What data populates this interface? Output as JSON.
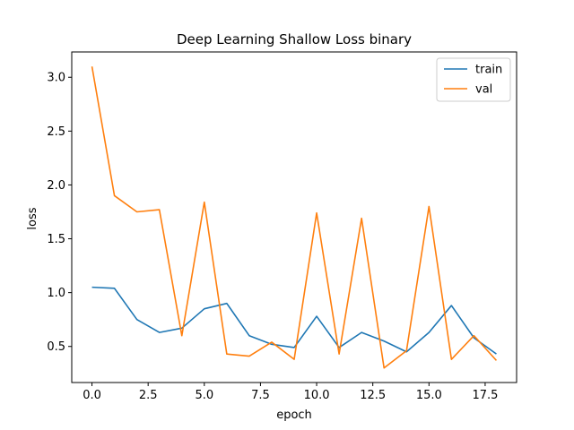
{
  "chart_data": {
    "type": "line",
    "title": "Deep Learning Shallow Loss binary",
    "xlabel": "epoch",
    "ylabel": "loss",
    "xlim": [
      -0.9,
      18.9
    ],
    "ylim": [
      0.165,
      3.235
    ],
    "xticks": [
      0.0,
      2.5,
      5.0,
      7.5,
      10.0,
      12.5,
      15.0,
      17.5
    ],
    "xtick_labels": [
      "0.0",
      "2.5",
      "5.0",
      "7.5",
      "10.0",
      "12.5",
      "15.0",
      "17.5"
    ],
    "yticks": [
      0.5,
      1.0,
      1.5,
      2.0,
      2.5,
      3.0
    ],
    "ytick_labels": [
      "0.5",
      "1.0",
      "1.5",
      "2.0",
      "2.5",
      "3.0"
    ],
    "grid": false,
    "legend_position": "top-right",
    "x": [
      0,
      1,
      2,
      3,
      4,
      5,
      6,
      7,
      8,
      9,
      10,
      11,
      12,
      13,
      14,
      15,
      16,
      17,
      18
    ],
    "series": [
      {
        "name": "train",
        "color": "#1f77b4",
        "values": [
          1.05,
          1.04,
          0.75,
          0.63,
          0.67,
          0.85,
          0.9,
          0.6,
          0.52,
          0.49,
          0.78,
          0.49,
          0.63,
          0.55,
          0.45,
          0.63,
          0.88,
          0.58,
          0.43
        ]
      },
      {
        "name": "val",
        "color": "#ff7f0e",
        "values": [
          3.1,
          1.9,
          1.75,
          1.77,
          0.6,
          1.84,
          0.43,
          0.41,
          0.54,
          0.38,
          1.74,
          0.43,
          1.69,
          0.3,
          0.46,
          1.8,
          0.38,
          0.6,
          0.37
        ]
      }
    ]
  }
}
